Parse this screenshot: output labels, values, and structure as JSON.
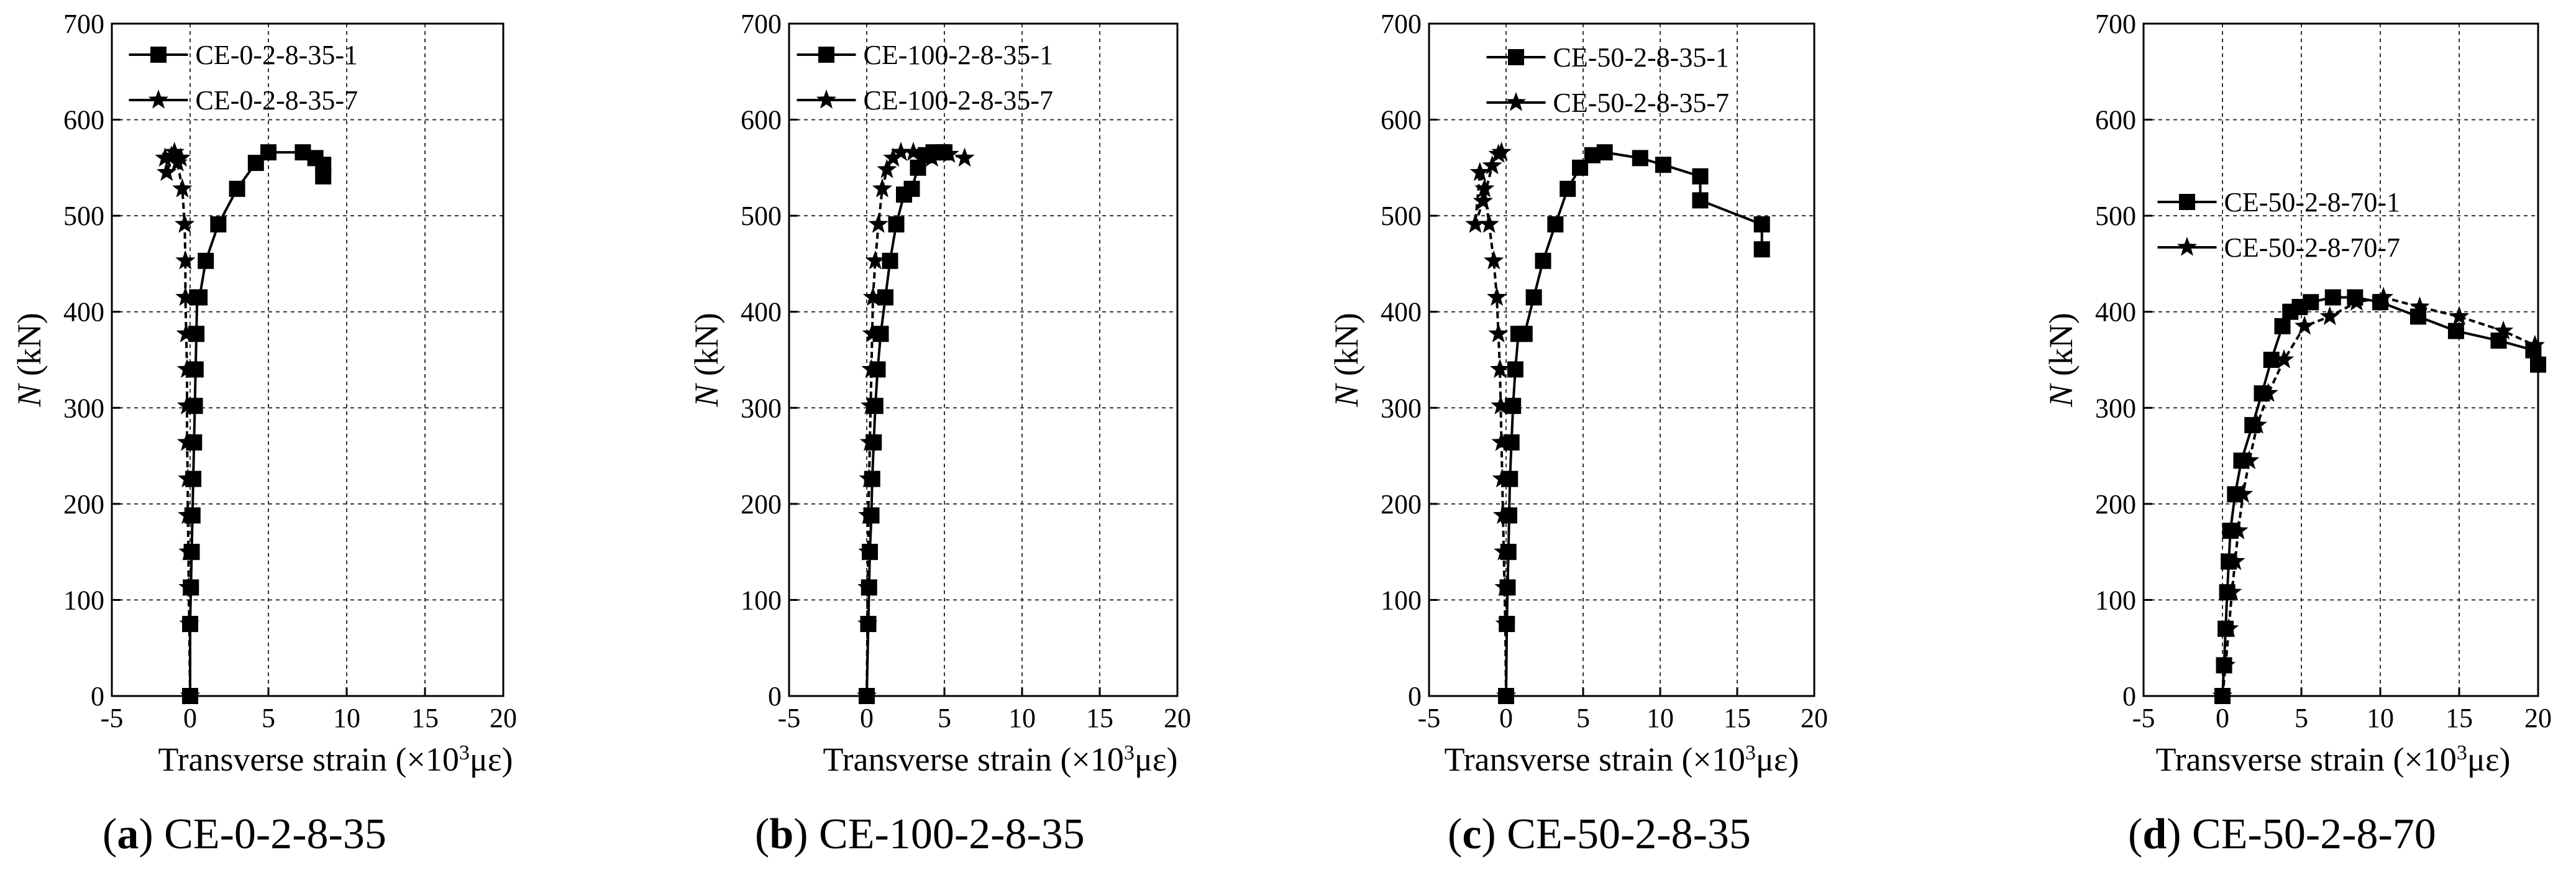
{
  "chart_data": [
    {
      "type": "line",
      "caption": {
        "letter": "a",
        "text": "CE-0-2-8-35"
      },
      "xlabel": "Transverse strain (×10³με)",
      "ylabel": "N (kN)",
      "xlim": [
        -5,
        20
      ],
      "ylim": [
        0,
        700
      ],
      "xticks": [
        "-5",
        "0",
        "5",
        "10",
        "15",
        "20"
      ],
      "yticks": [
        "0",
        "100",
        "200",
        "300",
        "400",
        "500",
        "600",
        "700"
      ],
      "grid": true,
      "legend_position": "top-left",
      "series": [
        {
          "name": "CE-0-2-8-35-1",
          "marker": "square",
          "x": [
            0,
            0,
            0.05,
            0.1,
            0.15,
            0.2,
            0.25,
            0.3,
            0.35,
            0.4,
            0.45,
            0.6,
            1.0,
            1.8,
            3.0,
            4.2,
            5.0,
            7.2,
            8.0,
            8.5,
            8.5
          ],
          "y": [
            0,
            75,
            113,
            150,
            188,
            226,
            264,
            302,
            340,
            377,
            415,
            415,
            453,
            491,
            528,
            555,
            566,
            566,
            560,
            553,
            541
          ]
        },
        {
          "name": "CE-0-2-8-35-7",
          "marker": "star",
          "x": [
            0,
            -0.05,
            -0.1,
            -0.1,
            -0.15,
            -0.15,
            -0.2,
            -0.2,
            -0.2,
            -0.25,
            -0.3,
            -0.3,
            -0.35,
            -0.5,
            -0.8,
            -1.2,
            -1.6,
            -1.5,
            -1.0,
            -0.6
          ],
          "y": [
            0,
            75,
            113,
            150,
            188,
            226,
            264,
            302,
            340,
            377,
            415,
            453,
            491,
            528,
            555,
            562,
            560,
            545,
            566,
            560
          ]
        }
      ]
    },
    {
      "type": "line",
      "caption": {
        "letter": "b",
        "text": "CE-100-2-8-35"
      },
      "xlabel": "Transverse strain (×10³με)",
      "ylabel": "N (kN)",
      "xlim": [
        -5,
        20
      ],
      "ylim": [
        0,
        700
      ],
      "xticks": [
        "-5",
        "0",
        "5",
        "10",
        "15",
        "20"
      ],
      "yticks": [
        "0",
        "100",
        "200",
        "300",
        "400",
        "500",
        "600",
        "700"
      ],
      "grid": true,
      "legend_position": "top-left",
      "series": [
        {
          "name": "CE-100-2-8-35-1",
          "marker": "square",
          "x": [
            0,
            0.1,
            0.15,
            0.2,
            0.3,
            0.35,
            0.45,
            0.55,
            0.7,
            0.9,
            1.2,
            1.5,
            1.9,
            2.4,
            2.9,
            3.3,
            3.8,
            4.3,
            4.8,
            5.0
          ],
          "y": [
            0,
            75,
            113,
            150,
            188,
            226,
            264,
            302,
            340,
            377,
            415,
            453,
            491,
            522,
            528,
            550,
            563,
            566,
            566,
            566
          ]
        },
        {
          "name": "CE-100-2-8-35-7",
          "marker": "star",
          "x": [
            0,
            0.05,
            0.05,
            0.1,
            0.1,
            0.15,
            0.2,
            0.25,
            0.3,
            0.35,
            0.4,
            0.55,
            0.75,
            1.0,
            1.3,
            1.7,
            2.2,
            3.0,
            4.2,
            5.3,
            6.3
          ],
          "y": [
            0,
            75,
            113,
            150,
            188,
            226,
            264,
            302,
            340,
            377,
            415,
            453,
            491,
            528,
            548,
            560,
            566,
            566,
            560,
            564,
            560
          ]
        }
      ]
    },
    {
      "type": "line",
      "caption": {
        "letter": "c",
        "text": "CE-50-2-8-35"
      },
      "xlabel": "Transverse strain (×10³με)",
      "ylabel": "N (kN)",
      "xlim": [
        -5,
        20
      ],
      "ylim": [
        0,
        700
      ],
      "xticks": [
        "-5",
        "0",
        "5",
        "10",
        "15",
        "20"
      ],
      "yticks": [
        "0",
        "100",
        "200",
        "300",
        "400",
        "500",
        "600",
        "700"
      ],
      "grid": true,
      "legend_position": "top-left",
      "series": [
        {
          "name": "CE-50-2-8-35-1",
          "marker": "square",
          "x": [
            0,
            0.05,
            0.1,
            0.15,
            0.2,
            0.25,
            0.35,
            0.45,
            0.6,
            0.8,
            1.2,
            1.8,
            2.4,
            3.2,
            4.0,
            4.8,
            5.6,
            6.4,
            8.7,
            10.2,
            12.6,
            12.6,
            16.6,
            16.6
          ],
          "y": [
            0,
            75,
            113,
            150,
            188,
            226,
            264,
            302,
            340,
            377,
            377,
            415,
            453,
            491,
            528,
            550,
            563,
            566,
            560,
            553,
            541,
            516,
            491,
            465
          ]
        },
        {
          "name": "CE-50-2-8-35-7",
          "marker": "star",
          "x": [
            0,
            -0.05,
            -0.1,
            -0.15,
            -0.2,
            -0.25,
            -0.3,
            -0.35,
            -0.4,
            -0.5,
            -0.6,
            -0.8,
            -1.1,
            -1.4,
            -1.7,
            -2.0,
            -1.5,
            -0.9,
            -0.5,
            -0.3
          ],
          "y": [
            0,
            75,
            113,
            150,
            188,
            226,
            264,
            302,
            340,
            377,
            415,
            453,
            491,
            528,
            545,
            491,
            515,
            552,
            564,
            566
          ]
        }
      ]
    },
    {
      "type": "line",
      "caption": {
        "letter": "d",
        "text": "CE-50-2-8-70"
      },
      "xlabel": "Transverse strain (×10³με)",
      "ylabel": "N (kN)",
      "xlim": [
        -5,
        20
      ],
      "ylim": [
        0,
        700
      ],
      "xticks": [
        "-5",
        "0",
        "5",
        "10",
        "15",
        "20"
      ],
      "yticks": [
        "0",
        "100",
        "200",
        "300",
        "400",
        "500",
        "600",
        "700"
      ],
      "grid": true,
      "legend_position": "center-left",
      "series": [
        {
          "name": "CE-50-2-8-70-1",
          "marker": "square",
          "x": [
            0,
            0.1,
            0.2,
            0.3,
            0.4,
            0.5,
            0.8,
            1.2,
            1.9,
            2.5,
            3.1,
            3.8,
            4.3,
            4.9,
            5.6,
            7.0,
            8.4,
            10.0,
            12.4,
            14.8,
            17.5,
            19.7,
            20.0
          ],
          "y": [
            0,
            32,
            70,
            108,
            140,
            172,
            210,
            245,
            282,
            315,
            350,
            385,
            400,
            405,
            410,
            415,
            415,
            410,
            395,
            380,
            370,
            360,
            345
          ]
        },
        {
          "name": "CE-50-2-8-70-7",
          "marker": "star",
          "x": [
            0,
            0.2,
            0.4,
            0.6,
            0.8,
            1.0,
            1.3,
            1.7,
            2.2,
            2.9,
            3.9,
            5.2,
            6.8,
            8.5,
            10.2,
            12.5,
            15.0,
            17.8,
            19.8
          ],
          "y": [
            0,
            32,
            70,
            108,
            140,
            172,
            210,
            245,
            282,
            315,
            350,
            385,
            395,
            410,
            415,
            405,
            395,
            380,
            365
          ]
        }
      ]
    }
  ]
}
